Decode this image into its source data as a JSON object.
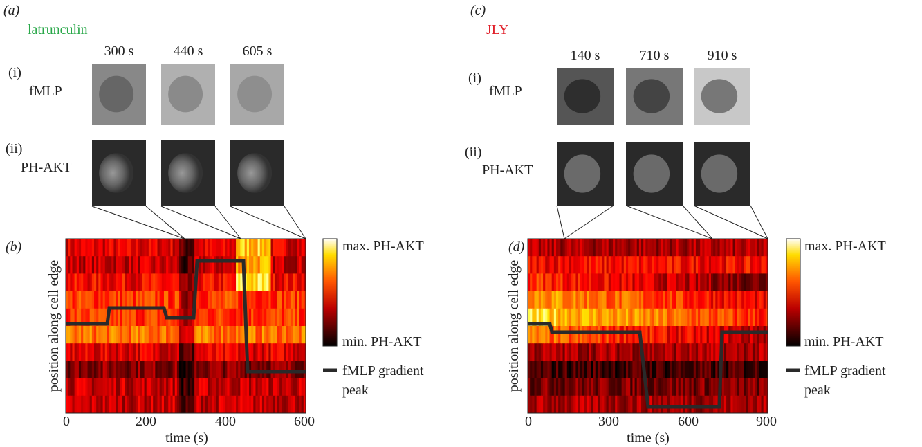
{
  "panels": {
    "a": {
      "label": "(a)",
      "drug": "latrunculin",
      "times": [
        "300 s",
        "440 s",
        "605 s"
      ],
      "rows": [
        {
          "label": "(i)",
          "name": "fMLP"
        },
        {
          "label": "(ii)",
          "name": "PH-AKT"
        }
      ]
    },
    "b": {
      "label": "(b)",
      "ylabel": "position along cell edge",
      "xlabel": "time (s)",
      "xticks": [
        0,
        200,
        400,
        600
      ],
      "legend": {
        "max": "max. PH-AKT",
        "min": "min. PH-AKT",
        "line": "fMLP gradient peak"
      }
    },
    "c": {
      "label": "(c)",
      "drug": "JLY",
      "times": [
        "140 s",
        "710 s",
        "910 s"
      ],
      "rows": [
        {
          "label": "(i)",
          "name": "fMLP"
        },
        {
          "label": "(ii)",
          "name": "PH-AKT"
        }
      ]
    },
    "d": {
      "label": "(d)",
      "ylabel": "position along cell edge",
      "xlabel": "time (s)",
      "xticks": [
        0,
        300,
        600,
        900
      ],
      "legend": {
        "max": "max. PH-AKT",
        "min": "min. PH-AKT",
        "line": "fMLP gradient peak"
      }
    }
  }
}
